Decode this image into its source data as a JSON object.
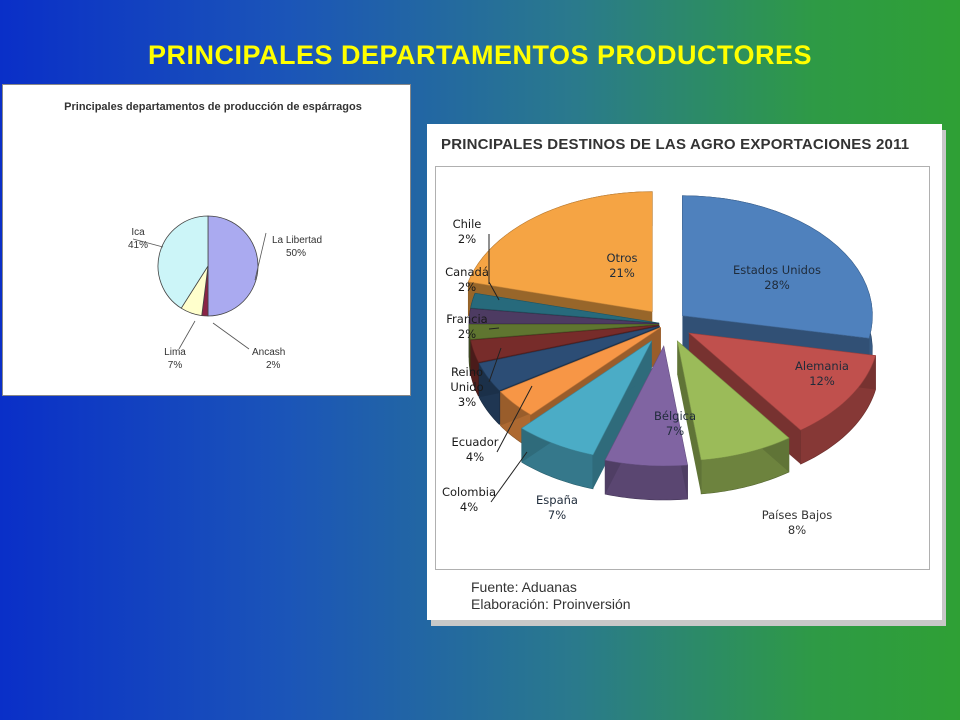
{
  "slide": {
    "title": "PRINCIPALES DEPARTAMENTOS PRODUCTORES"
  },
  "chart_data": [
    {
      "type": "pie",
      "title": "Principales departamentos de producción de espárragos",
      "slices": [
        {
          "label": "La Libertad",
          "value": 50,
          "pct": "50%",
          "color": "#aaaaf0"
        },
        {
          "label": "Ancash",
          "value": 2,
          "pct": "2%",
          "color": "#8a2445"
        },
        {
          "label": "Lima",
          "value": 7,
          "pct": "7%",
          "color": "#ffffcc"
        },
        {
          "label": "Ica",
          "value": 41,
          "pct": "41%",
          "color": "#ccf5f8"
        }
      ]
    },
    {
      "type": "pie",
      "title": "PRINCIPALES DESTINOS DE LAS AGRO EXPORTACIONES 2011",
      "slices": [
        {
          "label": "Estados Unidos",
          "value": 28,
          "pct": "28%",
          "color": "#4f81bd"
        },
        {
          "label": "Alemania",
          "value": 12,
          "pct": "12%",
          "color": "#c0504d"
        },
        {
          "label": "Países Bajos",
          "value": 8,
          "pct": "8%",
          "color": "#9bbb59"
        },
        {
          "label": "Bélgica",
          "value": 7,
          "pct": "7%",
          "color": "#8064a2"
        },
        {
          "label": "España",
          "value": 7,
          "pct": "7%",
          "color": "#4bacc6"
        },
        {
          "label": "Colombia",
          "value": 4,
          "pct": "4%",
          "color": "#f79646"
        },
        {
          "label": "Ecuador",
          "value": 4,
          "pct": "4%",
          "color": "#2c4d75"
        },
        {
          "label": "Reino Unido",
          "value": 3,
          "pct": "3%",
          "color": "#772c2a"
        },
        {
          "label": "Francia",
          "value": 2,
          "pct": "2%",
          "color": "#5f7530"
        },
        {
          "label": "Canadá",
          "value": 2,
          "pct": "2%",
          "color": "#4d3b62"
        },
        {
          "label": "Chile",
          "value": 2,
          "pct": "2%",
          "color": "#276a7c"
        },
        {
          "label": "Otros",
          "value": 21,
          "pct": "21%",
          "color": "#f5a444"
        }
      ],
      "source": [
        "Fuente: Aduanas",
        "Elaboración: Proinversión"
      ]
    }
  ]
}
